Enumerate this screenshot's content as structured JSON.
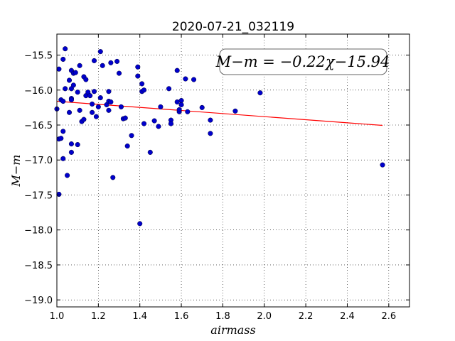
{
  "chart_data": {
    "type": "scatter",
    "title": "2020-07-21_032119",
    "xlabel": "airmass",
    "ylabel": "M−m",
    "xlim": [
      1.0,
      2.7
    ],
    "ylim": [
      -19.1,
      -15.2
    ],
    "xticks": [
      1.0,
      1.2,
      1.4,
      1.6,
      1.8,
      2.0,
      2.2,
      2.4,
      2.6
    ],
    "xtick_labels": [
      "1.0",
      "1.2",
      "1.4",
      "1.6",
      "1.8",
      "2.0",
      "2.2",
      "2.4",
      "2.6"
    ],
    "yticks": [
      -15.5,
      -16.0,
      -16.5,
      -17.0,
      -17.5,
      -18.0,
      -18.5,
      -19.0
    ],
    "ytick_labels": [
      "−15.5",
      "−16.0",
      "−16.5",
      "−17.0",
      "−17.5",
      "−18.0",
      "−18.5",
      "−19.0"
    ],
    "grid": true,
    "annotation": "M−m = −0.22χ−15.94",
    "point_color": "#0000cc",
    "fit_color": "#ff0000",
    "fit": {
      "slope": -0.22,
      "intercept": -15.94,
      "x_range": [
        1.0,
        2.57
      ]
    },
    "points": [
      {
        "x": 1.0,
        "y": -16.27
      },
      {
        "x": 1.01,
        "y": -17.49
      },
      {
        "x": 1.01,
        "y": -16.7
      },
      {
        "x": 1.01,
        "y": -15.7
      },
      {
        "x": 1.02,
        "y": -16.69
      },
      {
        "x": 1.02,
        "y": -16.14
      },
      {
        "x": 1.03,
        "y": -15.56
      },
      {
        "x": 1.03,
        "y": -16.16
      },
      {
        "x": 1.03,
        "y": -16.98
      },
      {
        "x": 1.03,
        "y": -16.59
      },
      {
        "x": 1.04,
        "y": -15.41
      },
      {
        "x": 1.04,
        "y": -15.98
      },
      {
        "x": 1.05,
        "y": -17.22
      },
      {
        "x": 1.06,
        "y": -15.86
      },
      {
        "x": 1.06,
        "y": -16.32
      },
      {
        "x": 1.07,
        "y": -15.72
      },
      {
        "x": 1.07,
        "y": -15.98
      },
      {
        "x": 1.07,
        "y": -16.12
      },
      {
        "x": 1.07,
        "y": -16.89
      },
      {
        "x": 1.07,
        "y": -16.77
      },
      {
        "x": 1.07,
        "y": -16.14
      },
      {
        "x": 1.08,
        "y": -15.76
      },
      {
        "x": 1.08,
        "y": -15.93
      },
      {
        "x": 1.09,
        "y": -15.75
      },
      {
        "x": 1.1,
        "y": -16.78
      },
      {
        "x": 1.1,
        "y": -16.03
      },
      {
        "x": 1.11,
        "y": -15.65
      },
      {
        "x": 1.11,
        "y": -16.29
      },
      {
        "x": 1.12,
        "y": -16.45
      },
      {
        "x": 1.13,
        "y": -15.81
      },
      {
        "x": 1.13,
        "y": -16.42
      },
      {
        "x": 1.14,
        "y": -15.85
      },
      {
        "x": 1.14,
        "y": -16.08
      },
      {
        "x": 1.15,
        "y": -16.03
      },
      {
        "x": 1.16,
        "y": -16.08
      },
      {
        "x": 1.17,
        "y": -16.2
      },
      {
        "x": 1.17,
        "y": -16.32
      },
      {
        "x": 1.18,
        "y": -15.58
      },
      {
        "x": 1.18,
        "y": -16.02
      },
      {
        "x": 1.19,
        "y": -16.38
      },
      {
        "x": 1.2,
        "y": -16.24
      },
      {
        "x": 1.21,
        "y": -15.45
      },
      {
        "x": 1.21,
        "y": -16.11
      },
      {
        "x": 1.22,
        "y": -15.65
      },
      {
        "x": 1.24,
        "y": -16.21
      },
      {
        "x": 1.25,
        "y": -16.02
      },
      {
        "x": 1.25,
        "y": -16.16
      },
      {
        "x": 1.25,
        "y": -16.29
      },
      {
        "x": 1.26,
        "y": -16.17
      },
      {
        "x": 1.26,
        "y": -15.61
      },
      {
        "x": 1.27,
        "y": -17.25
      },
      {
        "x": 1.29,
        "y": -15.59
      },
      {
        "x": 1.3,
        "y": -15.76
      },
      {
        "x": 1.31,
        "y": -16.24
      },
      {
        "x": 1.32,
        "y": -16.41
      },
      {
        "x": 1.33,
        "y": -16.4
      },
      {
        "x": 1.34,
        "y": -16.8
      },
      {
        "x": 1.36,
        "y": -16.65
      },
      {
        "x": 1.39,
        "y": -15.8
      },
      {
        "x": 1.39,
        "y": -15.67
      },
      {
        "x": 1.4,
        "y": -17.91
      },
      {
        "x": 1.41,
        "y": -15.91
      },
      {
        "x": 1.41,
        "y": -16.02
      },
      {
        "x": 1.42,
        "y": -16.0
      },
      {
        "x": 1.42,
        "y": -16.48
      },
      {
        "x": 1.45,
        "y": -16.89
      },
      {
        "x": 1.47,
        "y": -16.44
      },
      {
        "x": 1.49,
        "y": -16.52
      },
      {
        "x": 1.5,
        "y": -16.24
      },
      {
        "x": 1.54,
        "y": -15.98
      },
      {
        "x": 1.55,
        "y": -16.43
      },
      {
        "x": 1.55,
        "y": -16.48
      },
      {
        "x": 1.58,
        "y": -15.72
      },
      {
        "x": 1.58,
        "y": -16.17
      },
      {
        "x": 1.59,
        "y": -16.31
      },
      {
        "x": 1.59,
        "y": -16.28
      },
      {
        "x": 1.6,
        "y": -16.15
      },
      {
        "x": 1.6,
        "y": -16.21
      },
      {
        "x": 1.62,
        "y": -15.84
      },
      {
        "x": 1.63,
        "y": -16.31
      },
      {
        "x": 1.66,
        "y": -15.85
      },
      {
        "x": 1.7,
        "y": -16.25
      },
      {
        "x": 1.74,
        "y": -16.43
      },
      {
        "x": 1.74,
        "y": -16.62
      },
      {
        "x": 1.86,
        "y": -16.3
      },
      {
        "x": 1.98,
        "y": -16.04
      },
      {
        "x": 2.57,
        "y": -17.07
      }
    ]
  }
}
